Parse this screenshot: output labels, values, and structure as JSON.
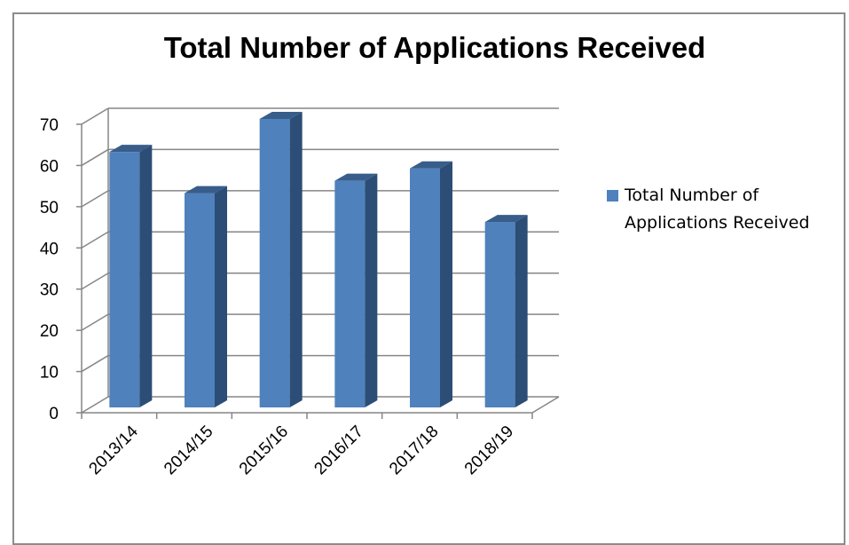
{
  "chart_data": {
    "type": "bar",
    "title": "Total Number of Applications  Received",
    "categories": [
      "2013/14",
      "2014/15",
      "2015/16",
      "2016/17",
      "2017/18",
      "2018/19"
    ],
    "series": [
      {
        "name": "Total Number of Applications Received",
        "values": [
          62,
          52,
          70,
          55,
          58,
          45
        ]
      }
    ],
    "ylim": [
      0,
      70
    ],
    "yticks": [
      0,
      10,
      20,
      30,
      40,
      50,
      60,
      70
    ],
    "grid": true,
    "legend": "right",
    "style": "3d-column",
    "colors": {
      "bar_front": "#4F81BD",
      "bar_side": "#2C4D75",
      "bar_top": "#385D8A",
      "gridline": "#868686"
    }
  }
}
